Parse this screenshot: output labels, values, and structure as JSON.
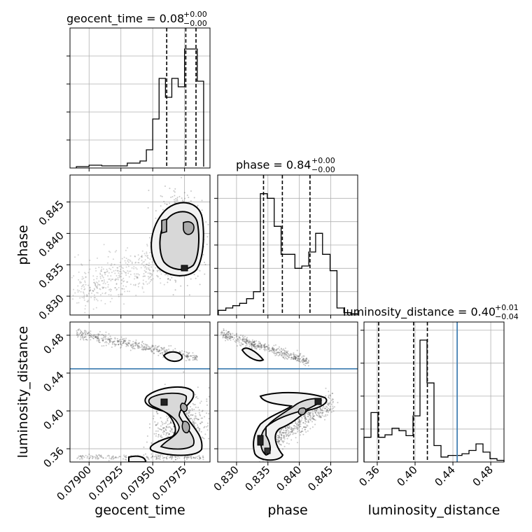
{
  "chart_data": {
    "type": "corner",
    "grid": true,
    "parameters": [
      {
        "name": "geocent_time",
        "title": {
          "prefix": "geocent_time = 0.08",
          "sup": "+0.00",
          "sub": "−0.00"
        },
        "axis_label": "geocent_time",
        "range": [
          0.07885,
          0.07995
        ],
        "ticks": [
          0.079,
          0.07925,
          0.0795,
          0.07975
        ],
        "tick_labels": [
          "0.07900",
          "0.07925",
          "0.07950",
          "0.07975"
        ],
        "quantiles": [
          0.07961,
          0.07976,
          0.07984
        ],
        "hist_bins": [
          0.0789,
          0.079,
          0.0791,
          0.0792,
          0.0793,
          0.0794,
          0.07945,
          0.0795,
          0.07955,
          0.0796,
          0.07965,
          0.0797,
          0.07975,
          0.0798,
          0.07985,
          0.0799
        ],
        "hist_heights": [
          1.0,
          2.0,
          1.5,
          1.5,
          3.5,
          5.0,
          13.0,
          35.0,
          64.0,
          50.5,
          64.0,
          58.0,
          85.0,
          85.0,
          62.0,
          1.0
        ]
      },
      {
        "name": "phase",
        "title": {
          "prefix": "phase = 0.84",
          "sup": "+0.00",
          "sub": "−0.00"
        },
        "axis_label": "phase",
        "range": [
          0.827,
          0.8493
        ],
        "ticks": [
          0.83,
          0.835,
          0.84,
          0.845
        ],
        "tick_labels": [
          "0.830",
          "0.835",
          "0.840",
          "0.845"
        ],
        "y_tick_labels": [
          "0.830",
          "0.835",
          "0.840",
          "0.845"
        ],
        "quantiles": [
          0.8343,
          0.8373,
          0.8417
        ],
        "hist_bins": [
          0.8271,
          0.8283,
          0.8294,
          0.8305,
          0.8316,
          0.8327,
          0.8338,
          0.8349,
          0.836,
          0.8371,
          0.8382,
          0.8393,
          0.8404,
          0.8415,
          0.8426,
          0.8437,
          0.8449,
          0.846,
          0.8471,
          0.8482,
          0.8493
        ],
        "hist_heights": [
          2,
          3,
          4,
          5,
          7,
          10,
          52,
          50,
          38,
          26,
          26,
          20,
          21,
          27,
          35,
          26,
          19,
          3,
          1,
          0.5
        ]
      },
      {
        "name": "luminosity_distance",
        "title": {
          "prefix": "luminosity_distance = 0.40",
          "sup": "+0.01",
          "sub": "−0.04"
        },
        "axis_label": "luminosity_distance",
        "range": [
          0.346,
          0.494
        ],
        "ticks": [
          0.36,
          0.4,
          0.44,
          0.48
        ],
        "tick_labels": [
          "0.36",
          "0.40",
          "0.44",
          "0.48"
        ],
        "y_tick_labels": [
          "0.36",
          "0.40",
          "0.44",
          "0.48"
        ],
        "truth": 0.4445,
        "quantiles": [
          0.3615,
          0.3985,
          0.413
        ],
        "hist_bins": [
          0.346,
          0.3534,
          0.3608,
          0.3682,
          0.3756,
          0.383,
          0.3904,
          0.3978,
          0.4052,
          0.4126,
          0.42,
          0.4274,
          0.4348,
          0.4422,
          0.4496,
          0.457,
          0.4644,
          0.4718,
          0.4792,
          0.4866,
          0.494
        ],
        "hist_heights": [
          30,
          60,
          30,
          33,
          41,
          38,
          32,
          56,
          148,
          96,
          20,
          6,
          8,
          8,
          10,
          14,
          22,
          12,
          4,
          2
        ]
      }
    ],
    "truth_line_color": "#4682b4",
    "scatter_regions": [
      {
        "panel": "phase-vs-geocent_time",
        "x": [
          0.0789,
          0.0799
        ],
        "y": [
          0.828,
          0.848
        ]
      },
      {
        "panel": "luminosity_distance-vs-geocent_time",
        "x": [
          0.0789,
          0.0799
        ],
        "y": [
          0.348,
          0.49
        ]
      },
      {
        "panel": "luminosity_distance-vs-phase",
        "x": [
          0.827,
          0.849
        ],
        "y": [
          0.348,
          0.49
        ]
      }
    ]
  }
}
